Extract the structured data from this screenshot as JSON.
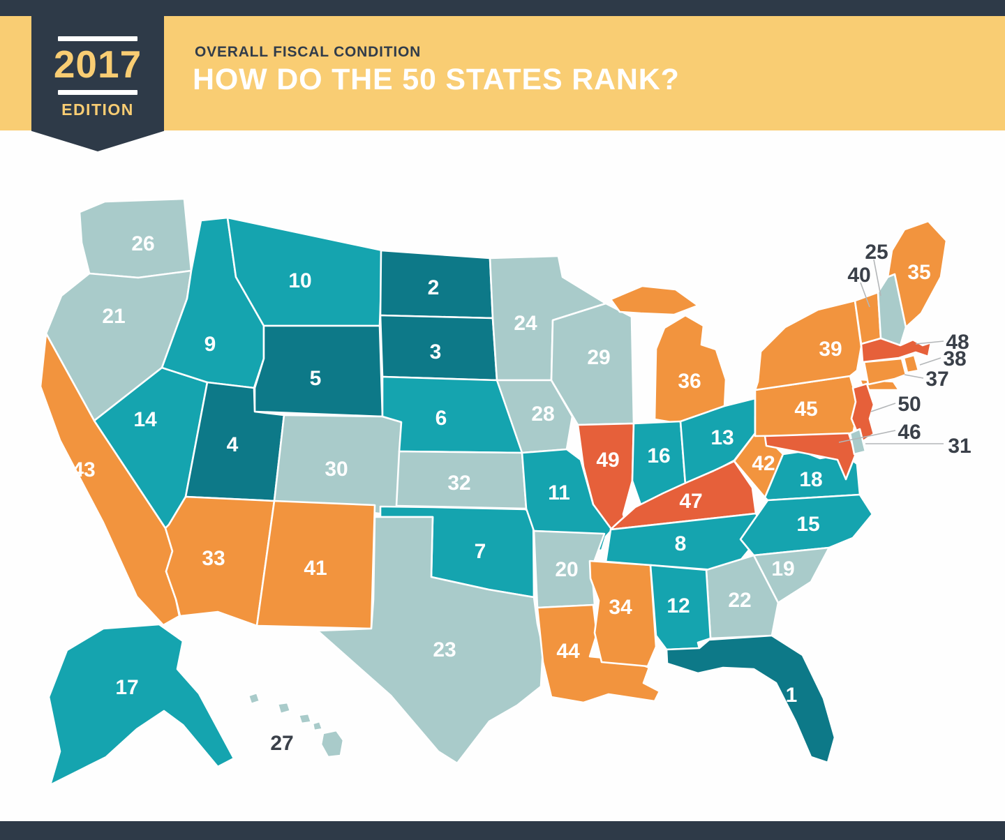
{
  "header": {
    "badge": {
      "year": "2017",
      "edition_label": "EDITION"
    },
    "kicker": "OVERALL FISCAL CONDITION",
    "title": "HOW DO THE 50 STATES RANK?"
  },
  "colors": {
    "header_navy": "#2e3a48",
    "header_yellow": "#f9cd73",
    "kicker_text": "#313c4a",
    "title_text": "#ffffff",
    "badge_text": "#f9cd73",
    "badge_rule": "#ffffff",
    "page_background": "#fefefe",
    "footer_navy": "#2e3a48",
    "state_border": "#ffffff",
    "rank_label_text": "#ffffff",
    "callout_text": "#3a4049",
    "callout_line": "#b3b6b8",
    "rank_bands": {
      "rank_1_5": "#0d7988",
      "rank_6_18": "#15a4af",
      "rank_19_32": "#a9cbca",
      "rank_33_45": "#f2943e",
      "rank_46_50": "#e6603a"
    }
  },
  "map": {
    "states": [
      {
        "abbr": "FL",
        "name": "Florida",
        "rank": "1",
        "band": "rank_1_5",
        "label_placement": "inside"
      },
      {
        "abbr": "ND",
        "name": "North Dakota",
        "rank": "2",
        "band": "rank_1_5",
        "label_placement": "inside"
      },
      {
        "abbr": "SD",
        "name": "South Dakota",
        "rank": "3",
        "band": "rank_1_5",
        "label_placement": "inside"
      },
      {
        "abbr": "UT",
        "name": "Utah",
        "rank": "4",
        "band": "rank_1_5",
        "label_placement": "inside"
      },
      {
        "abbr": "WY",
        "name": "Wyoming",
        "rank": "5",
        "band": "rank_1_5",
        "label_placement": "inside"
      },
      {
        "abbr": "NE",
        "name": "Nebraska",
        "rank": "6",
        "band": "rank_6_18",
        "label_placement": "inside"
      },
      {
        "abbr": "OK",
        "name": "Oklahoma",
        "rank": "7",
        "band": "rank_6_18",
        "label_placement": "inside"
      },
      {
        "abbr": "TN",
        "name": "Tennessee",
        "rank": "8",
        "band": "rank_6_18",
        "label_placement": "inside"
      },
      {
        "abbr": "ID",
        "name": "Idaho",
        "rank": "9",
        "band": "rank_6_18",
        "label_placement": "inside"
      },
      {
        "abbr": "MT",
        "name": "Montana",
        "rank": "10",
        "band": "rank_6_18",
        "label_placement": "inside"
      },
      {
        "abbr": "MO",
        "name": "Missouri",
        "rank": "11",
        "band": "rank_6_18",
        "label_placement": "inside"
      },
      {
        "abbr": "AL",
        "name": "Alabama",
        "rank": "12",
        "band": "rank_6_18",
        "label_placement": "inside"
      },
      {
        "abbr": "OH",
        "name": "Ohio",
        "rank": "13",
        "band": "rank_6_18",
        "label_placement": "inside"
      },
      {
        "abbr": "NV",
        "name": "Nevada",
        "rank": "14",
        "band": "rank_6_18",
        "label_placement": "inside"
      },
      {
        "abbr": "NC",
        "name": "North Carolina",
        "rank": "15",
        "band": "rank_6_18",
        "label_placement": "inside"
      },
      {
        "abbr": "IN",
        "name": "Indiana",
        "rank": "16",
        "band": "rank_6_18",
        "label_placement": "inside"
      },
      {
        "abbr": "AK",
        "name": "Alaska",
        "rank": "17",
        "band": "rank_6_18",
        "label_placement": "inside"
      },
      {
        "abbr": "VA",
        "name": "Virginia",
        "rank": "18",
        "band": "rank_6_18",
        "label_placement": "inside"
      },
      {
        "abbr": "SC",
        "name": "South Carolina",
        "rank": "19",
        "band": "rank_19_32",
        "label_placement": "inside"
      },
      {
        "abbr": "AR",
        "name": "Arkansas",
        "rank": "20",
        "band": "rank_19_32",
        "label_placement": "inside"
      },
      {
        "abbr": "OR",
        "name": "Oregon",
        "rank": "21",
        "band": "rank_19_32",
        "label_placement": "inside"
      },
      {
        "abbr": "GA",
        "name": "Georgia",
        "rank": "22",
        "band": "rank_19_32",
        "label_placement": "inside"
      },
      {
        "abbr": "TX",
        "name": "Texas",
        "rank": "23",
        "band": "rank_19_32",
        "label_placement": "inside"
      },
      {
        "abbr": "MN",
        "name": "Minnesota",
        "rank": "24",
        "band": "rank_19_32",
        "label_placement": "inside"
      },
      {
        "abbr": "NH",
        "name": "New Hampshire",
        "rank": "25",
        "band": "rank_19_32",
        "label_placement": "callout"
      },
      {
        "abbr": "WA",
        "name": "Washington",
        "rank": "26",
        "band": "rank_19_32",
        "label_placement": "inside"
      },
      {
        "abbr": "HI",
        "name": "Hawaii",
        "rank": "27",
        "band": "rank_19_32",
        "label_placement": "external"
      },
      {
        "abbr": "IA",
        "name": "Iowa",
        "rank": "28",
        "band": "rank_19_32",
        "label_placement": "inside"
      },
      {
        "abbr": "WI",
        "name": "Wisconsin",
        "rank": "29",
        "band": "rank_19_32",
        "label_placement": "inside"
      },
      {
        "abbr": "CO",
        "name": "Colorado",
        "rank": "30",
        "band": "rank_19_32",
        "label_placement": "inside"
      },
      {
        "abbr": "DE",
        "name": "Delaware",
        "rank": "31",
        "band": "rank_19_32",
        "label_placement": "callout"
      },
      {
        "abbr": "KS",
        "name": "Kansas",
        "rank": "32",
        "band": "rank_19_32",
        "label_placement": "inside"
      },
      {
        "abbr": "AZ",
        "name": "Arizona",
        "rank": "33",
        "band": "rank_33_45",
        "label_placement": "inside"
      },
      {
        "abbr": "MS",
        "name": "Mississippi",
        "rank": "34",
        "band": "rank_33_45",
        "label_placement": "inside"
      },
      {
        "abbr": "ME",
        "name": "Maine",
        "rank": "35",
        "band": "rank_33_45",
        "label_placement": "inside"
      },
      {
        "abbr": "MI",
        "name": "Michigan",
        "rank": "36",
        "band": "rank_33_45",
        "label_placement": "inside"
      },
      {
        "abbr": "CT",
        "name": "Connecticut",
        "rank": "37",
        "band": "rank_33_45",
        "label_placement": "callout"
      },
      {
        "abbr": "RI",
        "name": "Rhode Island",
        "rank": "38",
        "band": "rank_33_45",
        "label_placement": "callout"
      },
      {
        "abbr": "NY",
        "name": "New York",
        "rank": "39",
        "band": "rank_33_45",
        "label_placement": "inside"
      },
      {
        "abbr": "VT",
        "name": "Vermont",
        "rank": "40",
        "band": "rank_33_45",
        "label_placement": "callout"
      },
      {
        "abbr": "NM",
        "name": "New Mexico",
        "rank": "41",
        "band": "rank_33_45",
        "label_placement": "inside"
      },
      {
        "abbr": "WV",
        "name": "West Virginia",
        "rank": "42",
        "band": "rank_33_45",
        "label_placement": "inside"
      },
      {
        "abbr": "CA",
        "name": "California",
        "rank": "43",
        "band": "rank_33_45",
        "label_placement": "inside"
      },
      {
        "abbr": "LA",
        "name": "Louisiana",
        "rank": "44",
        "band": "rank_33_45",
        "label_placement": "inside"
      },
      {
        "abbr": "PA",
        "name": "Pennsylvania",
        "rank": "45",
        "band": "rank_33_45",
        "label_placement": "inside"
      },
      {
        "abbr": "MD",
        "name": "Maryland",
        "rank": "46",
        "band": "rank_46_50",
        "label_placement": "callout"
      },
      {
        "abbr": "KY",
        "name": "Kentucky",
        "rank": "47",
        "band": "rank_46_50",
        "label_placement": "inside"
      },
      {
        "abbr": "MA",
        "name": "Massachusetts",
        "rank": "48",
        "band": "rank_46_50",
        "label_placement": "callout"
      },
      {
        "abbr": "IL",
        "name": "Illinois",
        "rank": "49",
        "band": "rank_46_50",
        "label_placement": "inside"
      },
      {
        "abbr": "NJ",
        "name": "New Jersey",
        "rank": "50",
        "band": "rank_46_50",
        "label_placement": "callout"
      }
    ]
  }
}
